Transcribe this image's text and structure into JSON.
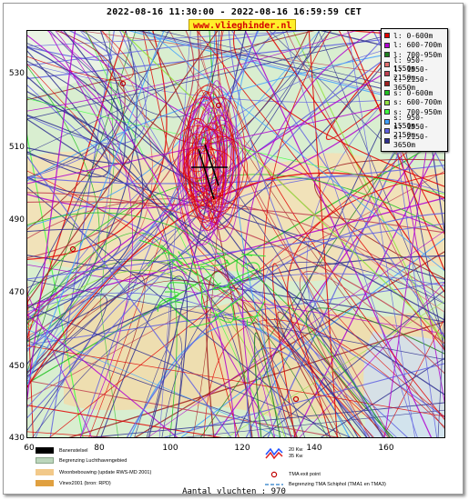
{
  "header": {
    "time_range": "2022-08-16 11:30:00 - 2022-08-16 16:59:59 CET",
    "site": "www.vlieghinder.nl"
  },
  "axes": {
    "y_ticks": [
      "530",
      "510",
      "490",
      "470",
      "450",
      "430"
    ],
    "x_ticks": [
      "60",
      "80",
      "100",
      "120",
      "140",
      "160"
    ]
  },
  "legend": {
    "items": [
      {
        "label": "l: 0-600m",
        "color": "#e00000"
      },
      {
        "label": "l: 600-700m",
        "color": "#b000d0"
      },
      {
        "label": "l: 700-950m",
        "color": "#208020"
      },
      {
        "label": "l: 950-1550m",
        "color": "#e07070"
      },
      {
        "label": "l: 1550-2150m",
        "color": "#c04050"
      },
      {
        "label": "l: 2150-3650m",
        "color": "#a02020"
      },
      {
        "label": "s: 0-600m",
        "color": "#20c020"
      },
      {
        "label": "s: 600-700m",
        "color": "#90e040"
      },
      {
        "label": "s: 700-950m",
        "color": "#40ff40"
      },
      {
        "label": "s: 950-1550m",
        "color": "#40a0ff"
      },
      {
        "label": "s: 1550-2150m",
        "color": "#6060e0"
      },
      {
        "label": "s: 2150-3650m",
        "color": "#303090"
      }
    ]
  },
  "bottom_legend": {
    "runway": "Banenstelsel",
    "airport_boundary": "Begrenzing Luchthavengebied",
    "housing": "Woonbebouwing (update RWS-MD 2001)",
    "vinex": "Vinex2001 (bron: RPD)",
    "kw_a": "20 Kw",
    "kw_b": "35 Kw",
    "tma_exit": "TMA exit point",
    "tma_boundary": "Begrenzing TMA Schiphol  (TMA1 en TMA3)"
  },
  "footer": {
    "count": "Aantal vluchten : 970"
  }
}
